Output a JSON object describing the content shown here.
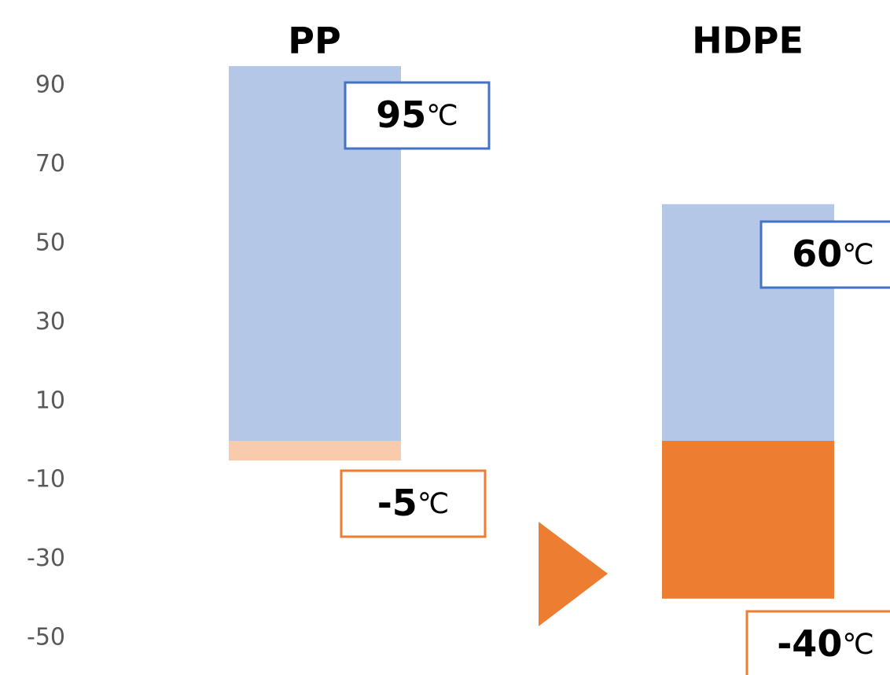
{
  "chart_data": {
    "type": "bar",
    "categories": [
      "PP",
      "HDPE"
    ],
    "series": [
      {
        "values": [
          95,
          60
        ],
        "color": "#B4C7E7"
      },
      {
        "values": [
          -5,
          -40
        ],
        "colors": [
          "#F8CBAD",
          "#ED7D31"
        ]
      }
    ],
    "yticks": [
      90,
      70,
      50,
      30,
      10,
      -10,
      -30,
      -50
    ],
    "ylim": [
      -52,
      100
    ],
    "unit": "℃",
    "labels": [
      {
        "category": "PP",
        "series": 0,
        "value": 95,
        "number": "95",
        "border": "#4472C4"
      },
      {
        "category": "PP",
        "series": 1,
        "value": -5,
        "number": "-5",
        "border": "#ED7D31"
      },
      {
        "category": "HDPE",
        "series": 0,
        "value": 60,
        "number": "60",
        "border": "#4472C4"
      },
      {
        "category": "HDPE",
        "series": 1,
        "value": -40,
        "number": "-40",
        "border": "#ED7D31"
      }
    ],
    "arrow_color": "#ED7D31",
    "grid": false,
    "legend": "none"
  }
}
